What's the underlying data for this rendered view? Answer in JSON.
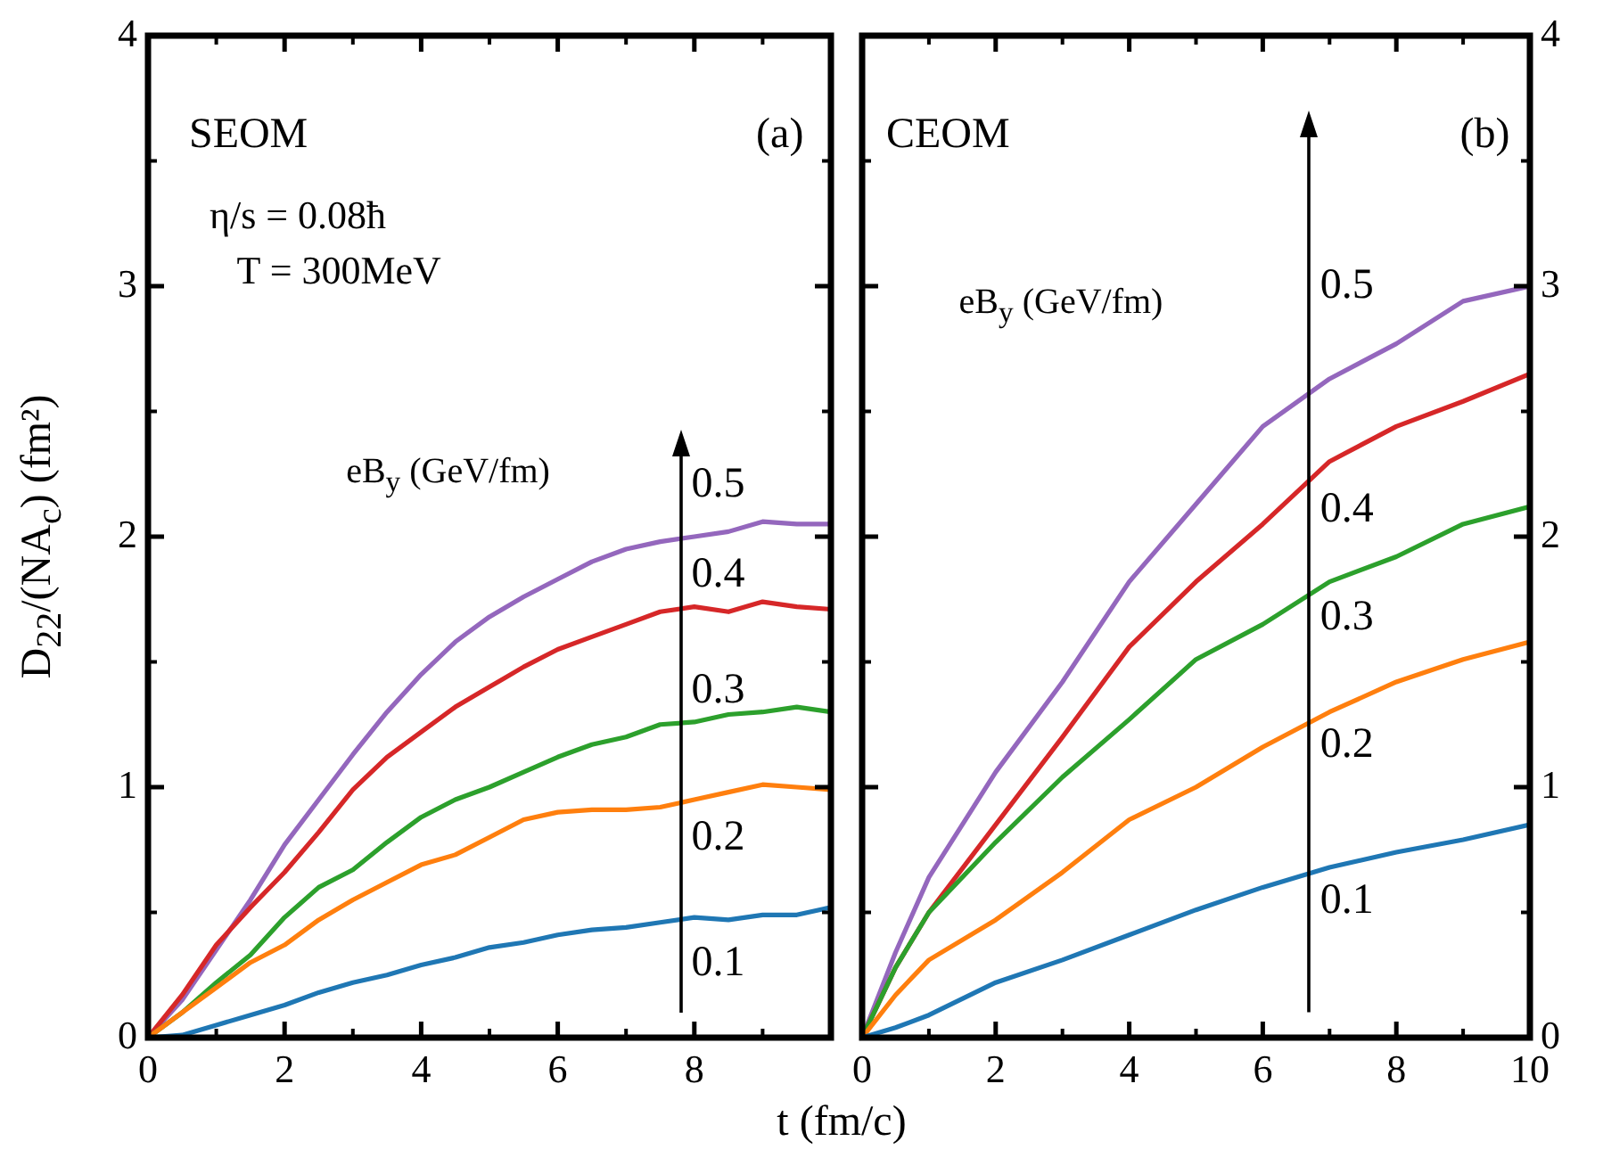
{
  "chart_data": [
    {
      "type": "line",
      "xlabel": "t (fm/c)",
      "ylabel": "D$_{22}$/(NA$_{c}$) (fm²)",
      "annotations": [
        "SEOM",
        "(a)",
        "η/s = 0.08ħ",
        "T = 300MeV",
        "eB$_{y}$ (GeV/fm)"
      ],
      "x": [
        0,
        0.5,
        1,
        1.5,
        2,
        2.5,
        3,
        3.5,
        4,
        4.5,
        5,
        5.5,
        6,
        6.5,
        7,
        7.5,
        8,
        8.5,
        9,
        9.5,
        10
      ],
      "xlim": [
        0,
        10
      ],
      "xticks": [
        0,
        2,
        4,
        6,
        8,
        {
          "value": 10,
          "label": null
        }
      ],
      "ylim": [
        0,
        4
      ],
      "yticks": [
        0,
        1,
        2,
        3,
        4
      ],
      "legend": false,
      "marker": "none",
      "series": [
        {
          "name": "0.1",
          "color": "#1f77b4",
          "values": [
            0,
            0.01,
            0.05,
            0.09,
            0.13,
            0.18,
            0.22,
            0.25,
            0.29,
            0.32,
            0.36,
            0.38,
            0.41,
            0.43,
            0.44,
            0.46,
            0.48,
            0.47,
            0.49,
            0.49,
            0.52
          ]
        },
        {
          "name": "0.2",
          "color": "#ff7f0e",
          "values": [
            0,
            0.1,
            0.2,
            0.3,
            0.37,
            0.47,
            0.55,
            0.62,
            0.69,
            0.73,
            0.8,
            0.87,
            0.9,
            0.91,
            0.91,
            0.92,
            0.95,
            0.98,
            1.01,
            1.0,
            0.99
          ]
        },
        {
          "name": "0.3",
          "color": "#2ca02c",
          "values": [
            0,
            0.1,
            0.22,
            0.33,
            0.48,
            0.6,
            0.67,
            0.78,
            0.88,
            0.95,
            1.0,
            1.06,
            1.12,
            1.17,
            1.2,
            1.25,
            1.26,
            1.29,
            1.3,
            1.32,
            1.3
          ]
        },
        {
          "name": "0.4",
          "color": "#d62728",
          "values": [
            0,
            0.17,
            0.37,
            0.52,
            0.66,
            0.82,
            0.99,
            1.12,
            1.22,
            1.32,
            1.4,
            1.48,
            1.55,
            1.6,
            1.65,
            1.7,
            1.72,
            1.7,
            1.74,
            1.72,
            1.71
          ]
        },
        {
          "name": "0.5",
          "color": "#9467bd",
          "values": [
            0,
            0.15,
            0.35,
            0.55,
            0.77,
            0.95,
            1.13,
            1.3,
            1.45,
            1.58,
            1.68,
            1.76,
            1.83,
            1.9,
            1.95,
            1.98,
            2.0,
            2.02,
            2.06,
            2.05,
            2.05
          ]
        }
      ]
    },
    {
      "type": "line",
      "annotations": [
        "CEOM",
        "(b)",
        "eB$_{y}$ (GeV/fm)"
      ],
      "x": [
        0,
        0.5,
        1,
        2,
        3,
        4,
        5,
        6,
        7,
        8,
        9,
        10
      ],
      "xlim": [
        0,
        10
      ],
      "xticks": [
        0,
        2,
        4,
        6,
        8,
        10
      ],
      "ylim": [
        0,
        4
      ],
      "yticks": [
        0,
        1,
        2,
        3,
        4
      ],
      "legend": false,
      "marker": "none",
      "series": [
        {
          "name": "0.1",
          "color": "#1f77b4",
          "values": [
            0,
            0.04,
            0.09,
            0.22,
            0.31,
            0.41,
            0.51,
            0.6,
            0.68,
            0.74,
            0.79,
            0.85
          ]
        },
        {
          "name": "0.2",
          "color": "#ff7f0e",
          "values": [
            0,
            0.17,
            0.31,
            0.47,
            0.66,
            0.87,
            1.0,
            1.16,
            1.3,
            1.42,
            1.51,
            1.58
          ]
        },
        {
          "name": "0.3",
          "color": "#2ca02c",
          "values": [
            0,
            0.28,
            0.5,
            0.78,
            1.04,
            1.27,
            1.51,
            1.65,
            1.82,
            1.92,
            2.05,
            2.12
          ]
        },
        {
          "name": "0.4",
          "color": "#d62728",
          "values": [
            0,
            0.28,
            0.5,
            0.85,
            1.2,
            1.56,
            1.82,
            2.05,
            2.3,
            2.44,
            2.54,
            2.65
          ]
        },
        {
          "name": "0.5",
          "color": "#9467bd",
          "values": [
            0,
            0.34,
            0.64,
            1.06,
            1.42,
            1.82,
            2.13,
            2.44,
            2.63,
            2.77,
            2.94,
            3.0
          ]
        }
      ]
    }
  ]
}
